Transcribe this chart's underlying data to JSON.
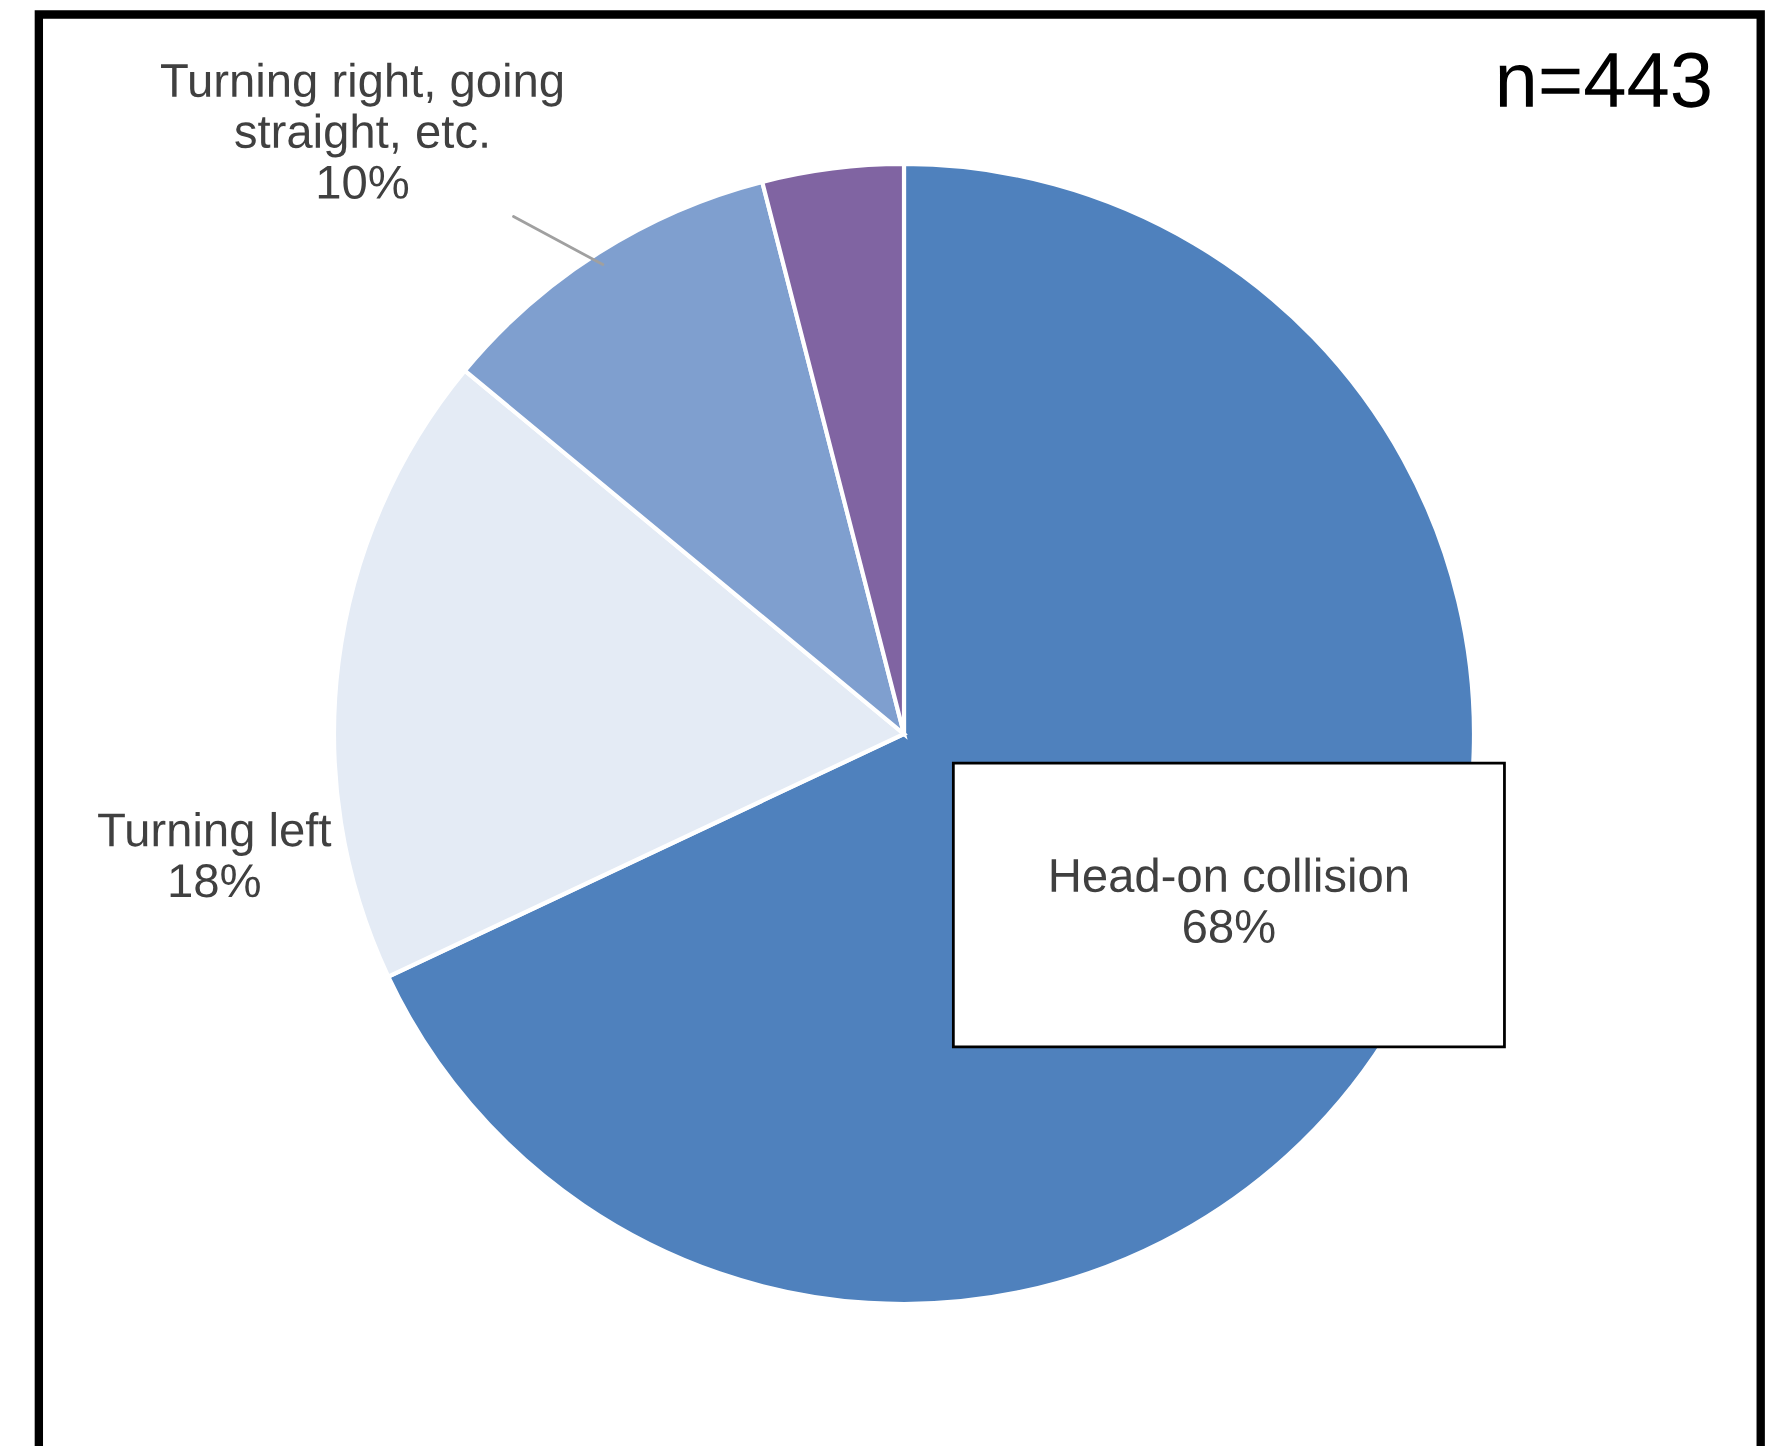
{
  "chart_data": {
    "type": "pie",
    "categories": [
      "Head-on collision",
      "Turning left",
      "Turning right, going\nstraight, etc.",
      null
    ],
    "values": [
      68,
      18,
      10,
      4
    ],
    "value_labels": [
      "68%",
      "18%",
      "10%",
      null
    ],
    "colors": [
      "#4f81bd",
      "#e4ebf5",
      "#7f9fcf",
      "#8064a2"
    ],
    "annotations": [
      "n=443"
    ],
    "legend": false
  }
}
